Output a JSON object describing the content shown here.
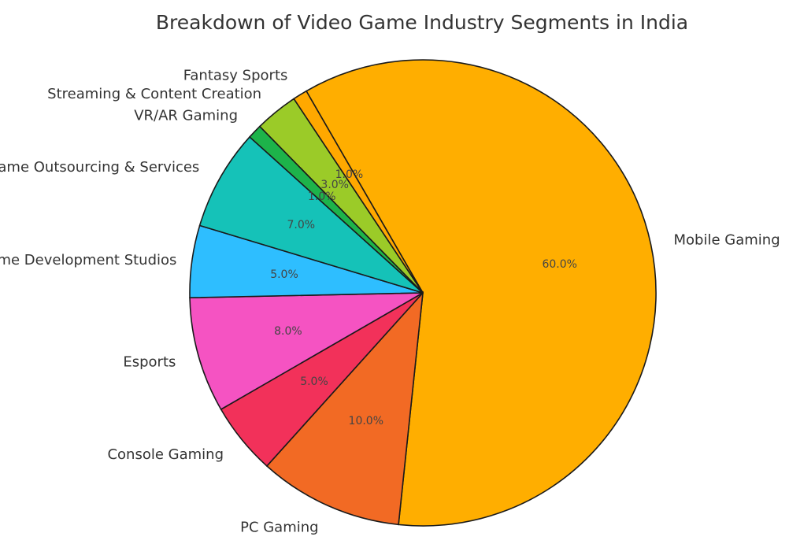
{
  "chart_data": {
    "type": "pie",
    "title": "Breakdown of Video Game Industry Segments in India",
    "start_angle_deg": 120,
    "direction": "clockwise",
    "slices": [
      {
        "label": "Mobile Gaming",
        "value": 60.0,
        "pct_label": "60.0%",
        "color": "#FFAE00"
      },
      {
        "label": "PC Gaming",
        "value": 10.0,
        "pct_label": "10.0%",
        "color": "#F26A24"
      },
      {
        "label": "Console Gaming",
        "value": 5.0,
        "pct_label": "5.0%",
        "color": "#F2315A"
      },
      {
        "label": "Esports",
        "value": 8.0,
        "pct_label": "8.0%",
        "color": "#F553C2"
      },
      {
        "label": "Game Development Studios",
        "value": 5.0,
        "pct_label": "5.0%",
        "color": "#2EBEFF"
      },
      {
        "label": "Game Outsourcing & Services",
        "value": 7.0,
        "pct_label": "7.0%",
        "color": "#15C2B8"
      },
      {
        "label": "VR/AR Gaming",
        "value": 1.0,
        "pct_label": "1.0%",
        "color": "#1DB34A"
      },
      {
        "label": "Streaming & Content Creation",
        "value": 3.0,
        "pct_label": "3.0%",
        "color": "#9BCB28"
      },
      {
        "label": "Fantasy Sports",
        "value": 1.0,
        "pct_label": "1.0%",
        "color": "#FFA800"
      }
    ]
  }
}
